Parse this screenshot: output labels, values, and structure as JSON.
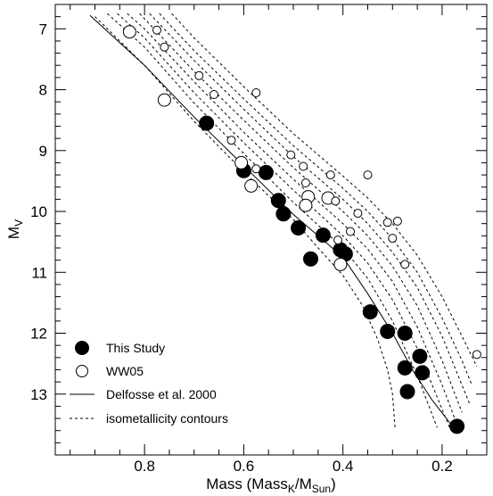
{
  "chart_data": {
    "type": "scatter",
    "xlabel": "Mass (Mass",
    "xlabel_sub1": "K",
    "xlabel_mid": "/M",
    "xlabel_sub2": "Sun",
    "xlabel_end": ")",
    "ylabel": "M",
    "ylabel_sub": "V",
    "xlim": [
      0.98,
      0.11
    ],
    "ylim": [
      6.6,
      14.0
    ],
    "x_inverted": true,
    "y_inverted": true,
    "x_ticks": [
      0.8,
      0.6,
      0.4,
      0.2
    ],
    "x_tick_labels": [
      "0.8",
      "0.6",
      "0.4",
      "0.2"
    ],
    "y_ticks": [
      7,
      8,
      9,
      10,
      11,
      12,
      13
    ],
    "y_tick_labels": [
      "7",
      "8",
      "9",
      "10",
      "11",
      "12",
      "13"
    ],
    "legend_position": "bottom-left",
    "legend": [
      {
        "label": "This Study",
        "style": "filled-circle"
      },
      {
        "label": "WW05",
        "style": "open-circle"
      },
      {
        "label": "Delfosse et al. 2000",
        "style": "solid-line"
      },
      {
        "label": "isometallicity contours",
        "style": "dashed-line"
      }
    ],
    "series": [
      {
        "style": "filled-circle",
        "points": [
          {
            "x": 0.675,
            "y": 8.55
          },
          {
            "x": 0.6,
            "y": 9.33
          },
          {
            "x": 0.555,
            "y": 9.36
          },
          {
            "x": 0.53,
            "y": 9.82
          },
          {
            "x": 0.52,
            "y": 10.04
          },
          {
            "x": 0.49,
            "y": 10.27
          },
          {
            "x": 0.44,
            "y": 10.39
          },
          {
            "x": 0.465,
            "y": 10.78
          },
          {
            "x": 0.405,
            "y": 10.63
          },
          {
            "x": 0.395,
            "y": 10.7
          },
          {
            "x": 0.345,
            "y": 11.65
          },
          {
            "x": 0.31,
            "y": 11.97
          },
          {
            "x": 0.275,
            "y": 12.0
          },
          {
            "x": 0.245,
            "y": 12.38
          },
          {
            "x": 0.275,
            "y": 12.57
          },
          {
            "x": 0.24,
            "y": 12.65
          },
          {
            "x": 0.27,
            "y": 12.96
          },
          {
            "x": 0.17,
            "y": 13.53
          }
        ]
      },
      {
        "style": "open-circle",
        "points": [
          {
            "x": 0.83,
            "y": 7.05,
            "size": "large"
          },
          {
            "x": 0.775,
            "y": 7.02
          },
          {
            "x": 0.76,
            "y": 7.3
          },
          {
            "x": 0.69,
            "y": 7.77
          },
          {
            "x": 0.66,
            "y": 8.08
          },
          {
            "x": 0.575,
            "y": 8.05
          },
          {
            "x": 0.76,
            "y": 8.17,
            "size": "large"
          },
          {
            "x": 0.625,
            "y": 8.83
          },
          {
            "x": 0.505,
            "y": 9.07
          },
          {
            "x": 0.575,
            "y": 9.3
          },
          {
            "x": 0.48,
            "y": 9.26
          },
          {
            "x": 0.425,
            "y": 9.4
          },
          {
            "x": 0.35,
            "y": 9.4
          },
          {
            "x": 0.605,
            "y": 9.2,
            "size": "large"
          },
          {
            "x": 0.585,
            "y": 9.58,
            "size": "large"
          },
          {
            "x": 0.475,
            "y": 9.53
          },
          {
            "x": 0.47,
            "y": 9.76,
            "size": "large"
          },
          {
            "x": 0.43,
            "y": 9.78,
            "size": "large"
          },
          {
            "x": 0.415,
            "y": 9.83
          },
          {
            "x": 0.475,
            "y": 9.9,
            "size": "large"
          },
          {
            "x": 0.37,
            "y": 10.03
          },
          {
            "x": 0.385,
            "y": 10.33
          },
          {
            "x": 0.31,
            "y": 10.18
          },
          {
            "x": 0.29,
            "y": 10.16
          },
          {
            "x": 0.3,
            "y": 10.44
          },
          {
            "x": 0.41,
            "y": 10.47
          },
          {
            "x": 0.405,
            "y": 10.87,
            "size": "large"
          },
          {
            "x": 0.275,
            "y": 10.87
          },
          {
            "x": 0.13,
            "y": 12.35
          }
        ]
      }
    ],
    "lines": [
      {
        "style": "solid",
        "points": [
          [
            0.91,
            6.78
          ],
          [
            0.8,
            7.6
          ],
          [
            0.7,
            8.45
          ],
          [
            0.6,
            9.25
          ],
          [
            0.5,
            10.05
          ],
          [
            0.4,
            10.75
          ],
          [
            0.35,
            11.35
          ],
          [
            0.3,
            12.0
          ],
          [
            0.26,
            12.6
          ],
          [
            0.22,
            13.1
          ],
          [
            0.18,
            13.52
          ]
        ]
      },
      {
        "style": "dashed",
        "points": [
          [
            0.9,
            6.8
          ],
          [
            0.8,
            7.6
          ],
          [
            0.7,
            8.52
          ],
          [
            0.6,
            9.35
          ],
          [
            0.5,
            10.13
          ],
          [
            0.45,
            10.6
          ],
          [
            0.4,
            11.05
          ],
          [
            0.36,
            11.55
          ],
          [
            0.33,
            12.1
          ],
          [
            0.31,
            12.6
          ],
          [
            0.3,
            13.0
          ],
          [
            0.295,
            13.55
          ]
        ]
      },
      {
        "style": "dashed",
        "points": [
          [
            0.875,
            6.75
          ],
          [
            0.8,
            7.3
          ],
          [
            0.7,
            8.22
          ],
          [
            0.6,
            9.05
          ],
          [
            0.5,
            9.85
          ],
          [
            0.4,
            10.6
          ],
          [
            0.35,
            11.1
          ],
          [
            0.3,
            11.8
          ],
          [
            0.25,
            12.7
          ],
          [
            0.21,
            13.55
          ]
        ]
      },
      {
        "style": "dashed",
        "points": [
          [
            0.855,
            6.75
          ],
          [
            0.8,
            7.15
          ],
          [
            0.7,
            8.05
          ],
          [
            0.6,
            8.87
          ],
          [
            0.5,
            9.65
          ],
          [
            0.4,
            10.4
          ],
          [
            0.35,
            10.85
          ],
          [
            0.3,
            11.45
          ],
          [
            0.25,
            12.25
          ],
          [
            0.2,
            13.25
          ],
          [
            0.185,
            13.55
          ]
        ]
      },
      {
        "style": "dashed",
        "points": [
          [
            0.835,
            6.75
          ],
          [
            0.8,
            7.0
          ],
          [
            0.7,
            7.87
          ],
          [
            0.6,
            8.7
          ],
          [
            0.5,
            9.47
          ],
          [
            0.4,
            10.2
          ],
          [
            0.35,
            10.62
          ],
          [
            0.3,
            11.15
          ],
          [
            0.25,
            11.9
          ],
          [
            0.2,
            12.85
          ],
          [
            0.17,
            13.5
          ]
        ]
      },
      {
        "style": "dashed",
        "points": [
          [
            0.81,
            6.75
          ],
          [
            0.7,
            7.7
          ],
          [
            0.6,
            8.5
          ],
          [
            0.5,
            9.28
          ],
          [
            0.4,
            10.0
          ],
          [
            0.35,
            10.4
          ],
          [
            0.3,
            10.9
          ],
          [
            0.25,
            11.55
          ],
          [
            0.2,
            12.45
          ],
          [
            0.16,
            13.3
          ]
        ]
      },
      {
        "style": "dashed",
        "points": [
          [
            0.79,
            6.75
          ],
          [
            0.7,
            7.52
          ],
          [
            0.6,
            8.32
          ],
          [
            0.5,
            9.1
          ],
          [
            0.4,
            9.8
          ],
          [
            0.35,
            10.2
          ],
          [
            0.3,
            10.67
          ],
          [
            0.25,
            11.25
          ],
          [
            0.2,
            12.05
          ],
          [
            0.15,
            13.05
          ],
          [
            0.145,
            13.15
          ]
        ]
      },
      {
        "style": "dashed",
        "points": [
          [
            0.77,
            6.75
          ],
          [
            0.7,
            7.36
          ],
          [
            0.6,
            8.15
          ],
          [
            0.5,
            8.92
          ],
          [
            0.4,
            9.62
          ],
          [
            0.35,
            10.0
          ],
          [
            0.3,
            10.45
          ],
          [
            0.25,
            11.0
          ],
          [
            0.2,
            11.75
          ],
          [
            0.16,
            12.45
          ],
          [
            0.14,
            12.85
          ]
        ]
      },
      {
        "style": "dashed",
        "points": [
          [
            0.745,
            6.75
          ],
          [
            0.7,
            7.15
          ],
          [
            0.6,
            7.95
          ],
          [
            0.5,
            8.72
          ],
          [
            0.4,
            9.42
          ],
          [
            0.35,
            9.78
          ],
          [
            0.3,
            10.2
          ],
          [
            0.25,
            10.72
          ],
          [
            0.2,
            11.4
          ],
          [
            0.16,
            12.05
          ],
          [
            0.13,
            12.55
          ]
        ]
      }
    ]
  }
}
